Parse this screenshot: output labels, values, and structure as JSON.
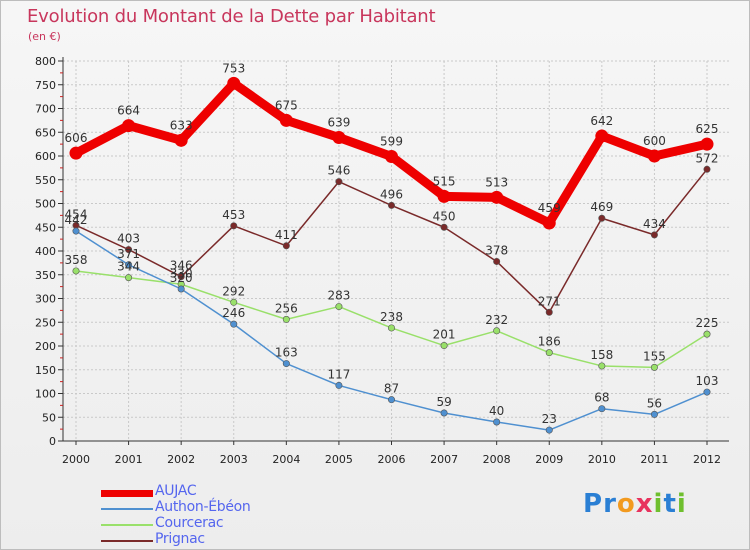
{
  "chart_data": {
    "type": "line",
    "title": "Evolution du Montant de la Dette par Habitant",
    "subtitle": "(en €)",
    "categories": [
      "2000",
      "2001",
      "2002",
      "2003",
      "2004",
      "2005",
      "2006",
      "2007",
      "2008",
      "2009",
      "2010",
      "2011",
      "2012"
    ],
    "ylim": [
      0,
      800
    ],
    "yticks": [
      0,
      50,
      100,
      150,
      200,
      250,
      300,
      350,
      400,
      450,
      500,
      550,
      600,
      650,
      700,
      750,
      800
    ],
    "grid": true,
    "legend_position": "bottom-left",
    "series": [
      {
        "name": "AUJAC",
        "color": "#ee0000",
        "values": [
          606,
          664,
          633,
          753,
          675,
          639,
          599,
          515,
          513,
          459,
          642,
          600,
          625
        ]
      },
      {
        "name": "Authon-Ébéon",
        "color": "#4f90d0",
        "values": [
          442,
          371,
          320,
          246,
          163,
          117,
          87,
          59,
          40,
          23,
          68,
          56,
          103
        ]
      },
      {
        "name": "Courcerac",
        "color": "#99e06a",
        "values": [
          358,
          344,
          330,
          292,
          256,
          283,
          238,
          201,
          232,
          186,
          158,
          155,
          225
        ]
      },
      {
        "name": "Prignac",
        "color": "#7a2a2a",
        "values": [
          454,
          403,
          346,
          453,
          411,
          546,
          496,
          450,
          378,
          271,
          469,
          434,
          572
        ]
      }
    ]
  },
  "brand": {
    "letters": [
      "P",
      "r",
      "o",
      "x",
      "i",
      "t",
      "i"
    ],
    "colors": [
      "#2a7fd4",
      "#2a7fd4",
      "#f29a1f",
      "#e8335e",
      "#6fbf2e",
      "#2a7fd4",
      "#6fbf2e"
    ]
  }
}
